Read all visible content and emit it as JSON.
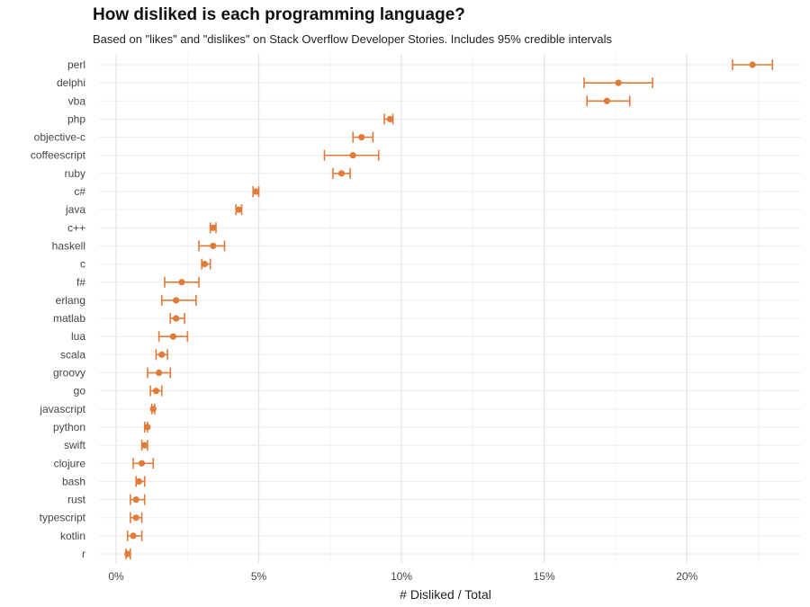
{
  "chart_data": {
    "type": "scatter",
    "title": "How disliked is each programming language?",
    "subtitle": "Based on \"likes\" and \"dislikes\" on Stack Overflow Developer Stories. Includes 95% credible intervals",
    "xlabel": "# Disliked / Total",
    "ylabel": "",
    "xlim": [
      -0.6,
      24
    ],
    "xticks": [
      0,
      5,
      10,
      15,
      20
    ],
    "xtick_labels": [
      "0%",
      "5%",
      "10%",
      "15%",
      "20%"
    ],
    "color": "#e07b39",
    "series": [
      {
        "name": "perl",
        "value": 22.3,
        "low": 21.6,
        "high": 23.0
      },
      {
        "name": "delphi",
        "value": 17.6,
        "low": 16.4,
        "high": 18.8
      },
      {
        "name": "vba",
        "value": 17.2,
        "low": 16.5,
        "high": 18.0
      },
      {
        "name": "php",
        "value": 9.6,
        "low": 9.4,
        "high": 9.7
      },
      {
        "name": "objective-c",
        "value": 8.6,
        "low": 8.3,
        "high": 9.0
      },
      {
        "name": "coffeescript",
        "value": 8.3,
        "low": 7.3,
        "high": 9.2
      },
      {
        "name": "ruby",
        "value": 7.9,
        "low": 7.6,
        "high": 8.2
      },
      {
        "name": "c#",
        "value": 4.9,
        "low": 4.8,
        "high": 5.0
      },
      {
        "name": "java",
        "value": 4.3,
        "low": 4.2,
        "high": 4.4
      },
      {
        "name": "c++",
        "value": 3.4,
        "low": 3.3,
        "high": 3.5
      },
      {
        "name": "haskell",
        "value": 3.4,
        "low": 2.9,
        "high": 3.8
      },
      {
        "name": "c",
        "value": 3.1,
        "low": 3.0,
        "high": 3.3
      },
      {
        "name": "f#",
        "value": 2.3,
        "low": 1.7,
        "high": 2.9
      },
      {
        "name": "erlang",
        "value": 2.1,
        "low": 1.6,
        "high": 2.8
      },
      {
        "name": "matlab",
        "value": 2.1,
        "low": 1.9,
        "high": 2.4
      },
      {
        "name": "lua",
        "value": 2.0,
        "low": 1.5,
        "high": 2.5
      },
      {
        "name": "scala",
        "value": 1.6,
        "low": 1.4,
        "high": 1.8
      },
      {
        "name": "groovy",
        "value": 1.5,
        "low": 1.1,
        "high": 1.9
      },
      {
        "name": "go",
        "value": 1.4,
        "low": 1.2,
        "high": 1.6
      },
      {
        "name": "javascript",
        "value": 1.3,
        "low": 1.25,
        "high": 1.35
      },
      {
        "name": "python",
        "value": 1.1,
        "low": 1.0,
        "high": 1.1
      },
      {
        "name": "swift",
        "value": 1.0,
        "low": 0.9,
        "high": 1.1
      },
      {
        "name": "clojure",
        "value": 0.9,
        "low": 0.6,
        "high": 1.3
      },
      {
        "name": "bash",
        "value": 0.8,
        "low": 0.7,
        "high": 1.0
      },
      {
        "name": "rust",
        "value": 0.7,
        "low": 0.5,
        "high": 1.0
      },
      {
        "name": "typescript",
        "value": 0.7,
        "low": 0.5,
        "high": 0.9
      },
      {
        "name": "kotlin",
        "value": 0.6,
        "low": 0.4,
        "high": 0.9
      },
      {
        "name": "r",
        "value": 0.4,
        "low": 0.35,
        "high": 0.5
      }
    ]
  }
}
